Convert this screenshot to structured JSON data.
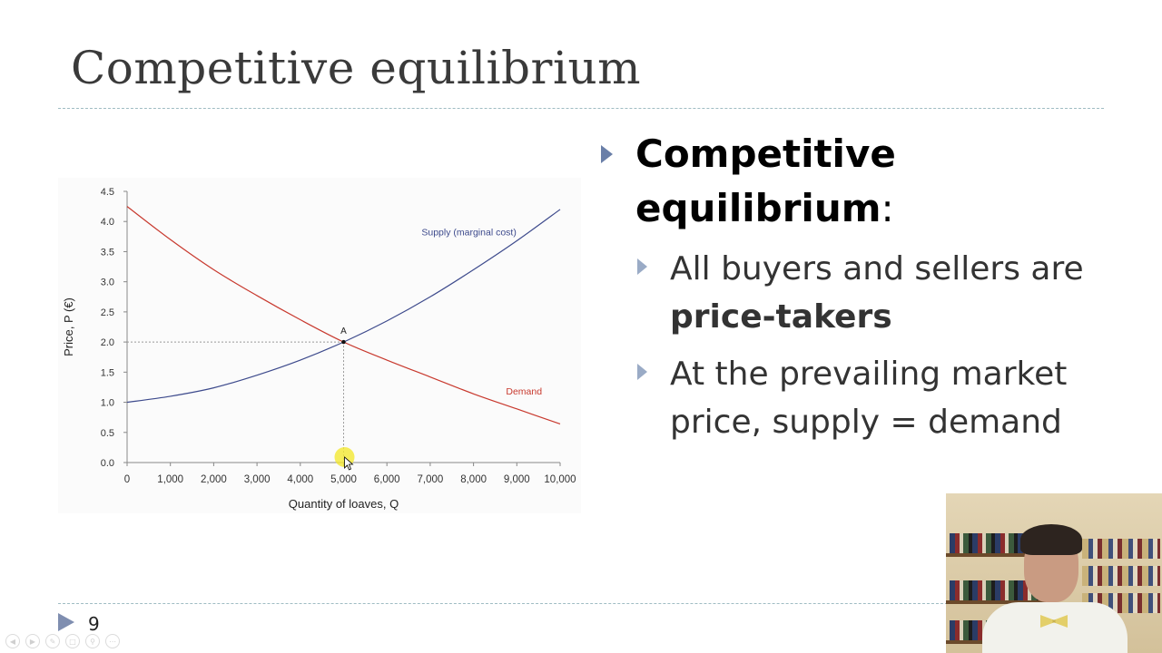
{
  "slide": {
    "title": "Competitive equilibrium",
    "page_number": "9"
  },
  "bullets": {
    "main_term": "Competitive equilibrium",
    "main_suffix": ":",
    "sub1_text": "All buyers and sellers are ",
    "sub1_bold": "price-takers",
    "sub2_text": "At the prevailing market price, supply = demand"
  },
  "chart_data": {
    "type": "line",
    "xlabel": "Quantity of loaves, Q",
    "ylabel": "Price, P (€)",
    "xlim": [
      0,
      10000
    ],
    "ylim": [
      0,
      4.5
    ],
    "x_ticks": [
      0,
      1000,
      2000,
      3000,
      4000,
      5000,
      6000,
      7000,
      8000,
      9000,
      10000
    ],
    "x_tick_labels": [
      "0",
      "1,000",
      "2,000",
      "3,000",
      "4,000",
      "5,000",
      "6,000",
      "7,000",
      "8,000",
      "9,000",
      "10,000"
    ],
    "y_ticks": [
      0,
      0.5,
      1,
      1.5,
      2,
      2.5,
      3,
      3.5,
      4,
      4.5
    ],
    "y_tick_labels": [
      "0.0",
      "0.5",
      "1.0",
      "1.5",
      "2.0",
      "2.5",
      "3.0",
      "3.5",
      "4.0",
      "4.5"
    ],
    "grid": false,
    "series": [
      {
        "name": "Supply (marginal cost)",
        "color": "#3d4a8c",
        "x": [
          0,
          1000,
          2000,
          3000,
          4000,
          5000,
          6000,
          7000,
          8000,
          9000,
          10000
        ],
        "y": [
          1.0,
          1.1,
          1.24,
          1.45,
          1.7,
          2.0,
          2.35,
          2.75,
          3.2,
          3.68,
          4.2
        ]
      },
      {
        "name": "Demand",
        "color": "#c8392e",
        "x": [
          0,
          1000,
          2000,
          3000,
          4000,
          5000,
          6000,
          7000,
          8000,
          9000,
          10000
        ],
        "y": [
          4.25,
          3.7,
          3.2,
          2.77,
          2.37,
          2.0,
          1.7,
          1.42,
          1.14,
          0.89,
          0.64
        ]
      }
    ],
    "annotations": [
      {
        "label": "A",
        "x": 5000,
        "y": 2.0
      }
    ]
  },
  "colors": {
    "title": "#3a3a3a",
    "rule": "#9fbcc3",
    "bullet_marker": "#7f8eb0"
  },
  "icons": {
    "bullet": "triangle-right-icon",
    "controls": [
      "prev-icon",
      "play-icon",
      "pen-icon",
      "slides-icon",
      "zoom-icon",
      "more-icon"
    ]
  }
}
